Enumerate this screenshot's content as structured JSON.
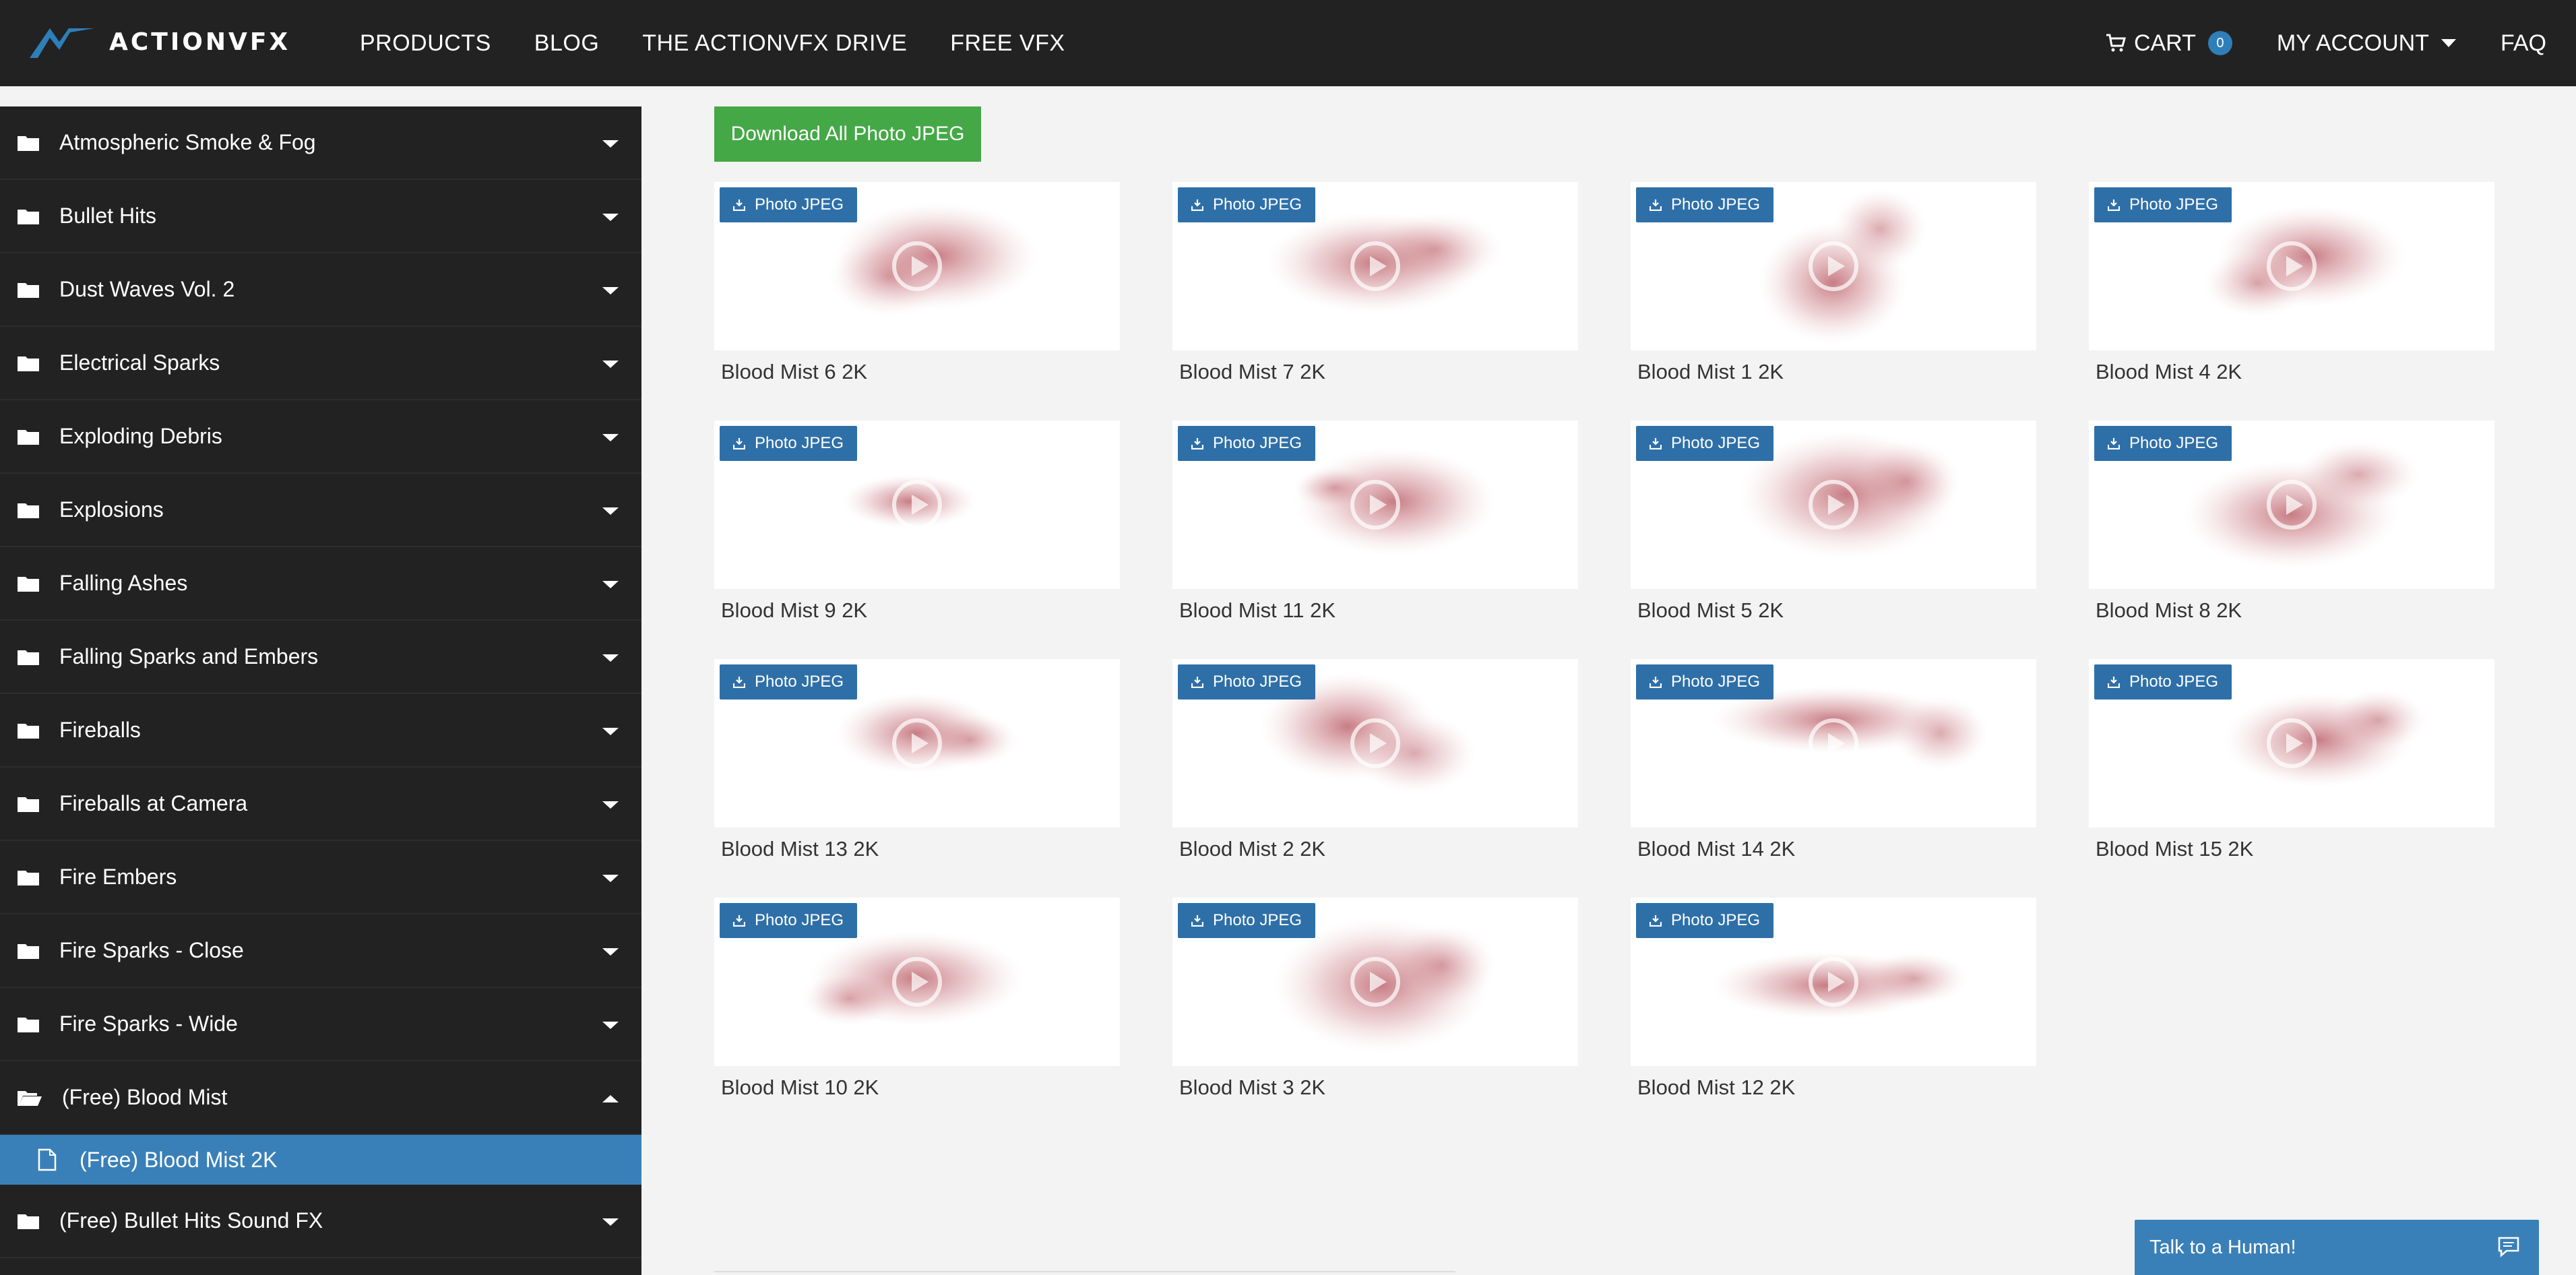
{
  "brand": {
    "name": "ACTIONVFX",
    "accent": "#2e7fb9"
  },
  "nav": {
    "links": [
      "PRODUCTS",
      "BLOG",
      "THE ACTIONVFX DRIVE",
      "FREE VFX"
    ],
    "cart_label": "CART",
    "cart_count": "0",
    "account_label": "MY ACCOUNT",
    "faq_label": "FAQ"
  },
  "sidebar": {
    "categories": [
      "Atmospheric Smoke & Fog",
      "Bullet Hits",
      "Dust Waves Vol. 2",
      "Electrical Sparks",
      "Exploding Debris",
      "Explosions",
      "Falling Ashes",
      "Falling Sparks and Embers",
      "Fireballs",
      "Fireballs at Camera",
      "Fire Embers",
      "Fire Sparks - Close",
      "Fire Sparks - Wide",
      "(Free) Blood Mist"
    ],
    "open_category": "(Free) Blood Mist",
    "active_subitem": "(Free) Blood Mist 2K",
    "after_categories": [
      "(Free) Bullet Hits Sound FX"
    ]
  },
  "main": {
    "download_all_label": "Download All Photo JPEG",
    "badge_label": "Photo JPEG",
    "items": [
      "Blood Mist 6 2K",
      "Blood Mist 7 2K",
      "Blood Mist 1 2K",
      "Blood Mist 4 2K",
      "Blood Mist 9 2K",
      "Blood Mist 11 2K",
      "Blood Mist 5 2K",
      "Blood Mist 8 2K",
      "Blood Mist 13 2K",
      "Blood Mist 2 2K",
      "Blood Mist 14 2K",
      "Blood Mist 15 2K",
      "Blood Mist 10 2K",
      "Blood Mist 3 2K",
      "Blood Mist 12 2K"
    ]
  },
  "chat": {
    "label": "Talk to a Human!"
  },
  "icons": [
    "logo-icon",
    "cart-icon",
    "folder-icon",
    "folder-open-icon",
    "document-icon",
    "download-icon",
    "play-icon",
    "chat-icon"
  ]
}
